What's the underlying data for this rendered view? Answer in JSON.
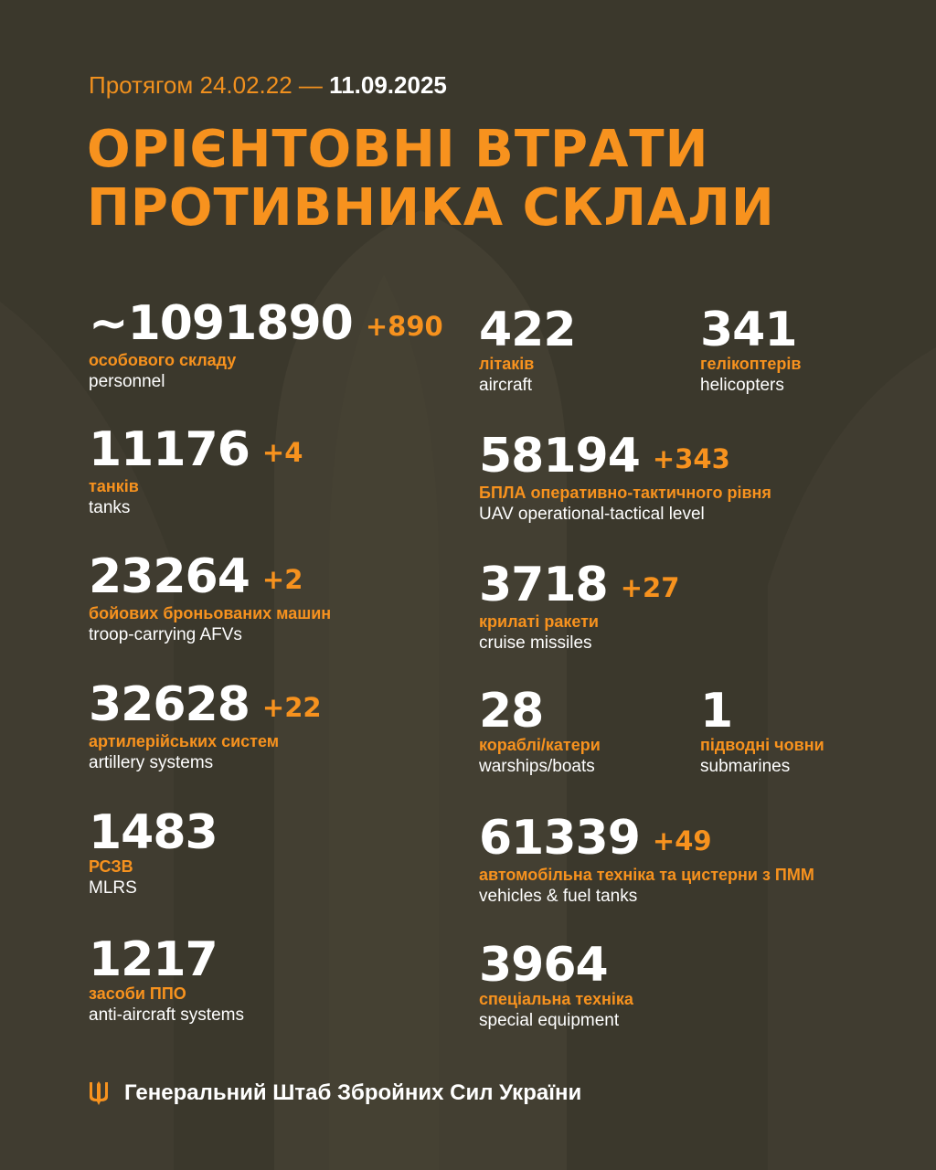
{
  "header": {
    "period_prefix": "Протягом 24.02.22 —",
    "period_end": "11.09.2025",
    "title_line1": "ОРІЄНТОВНІ ВТРАТИ",
    "title_line2": "ПРОТИВНИКА СКЛАЛИ"
  },
  "colors": {
    "accent": "#f7921e",
    "background": "#3b382c",
    "text": "#ffffff"
  },
  "stats": [
    {
      "value": "~1091890",
      "increase": "+890",
      "ua": "особового складу",
      "en": "personnel"
    },
    {
      "value": "11176",
      "increase": "+4",
      "ua": "танків",
      "en": "tanks"
    },
    {
      "value": "23264",
      "increase": "+2",
      "ua": "бойових броньованих машин",
      "en": "troop-carrying AFVs"
    },
    {
      "value": "32628",
      "increase": "+22",
      "ua": "артилерійських систем",
      "en": "artillery systems"
    },
    {
      "value": "1483",
      "increase": "",
      "ua": "РСЗВ",
      "en": "MLRS"
    },
    {
      "value": "1217",
      "increase": "",
      "ua": "засоби ППО",
      "en": "anti-aircraft systems"
    },
    {
      "value": "422",
      "increase": "",
      "ua": "літаків",
      "en": "aircraft"
    },
    {
      "value": "341",
      "increase": "",
      "ua": "гелікоптерів",
      "en": "helicopters"
    },
    {
      "value": "58194",
      "increase": "+343",
      "ua": "БПЛА оперативно-тактичного рівня",
      "en": "UAV operational-tactical level"
    },
    {
      "value": "3718",
      "increase": "+27",
      "ua": "крилаті ракети",
      "en": "cruise missiles"
    },
    {
      "value": "28",
      "increase": "",
      "ua": "кораблі/катери",
      "en": "warships/boats"
    },
    {
      "value": "1",
      "increase": "",
      "ua": "підводні човни",
      "en": "submarines"
    },
    {
      "value": "61339",
      "increase": "+49",
      "ua": "автомобільна техніка та цистерни з ПММ",
      "en": "vehicles & fuel tanks"
    },
    {
      "value": "3964",
      "increase": "",
      "ua": "спеціальна техніка",
      "en": "special equipment"
    }
  ],
  "footer": {
    "icon": "trident-icon",
    "text": "Генеральний Штаб Збройних Сил України"
  }
}
